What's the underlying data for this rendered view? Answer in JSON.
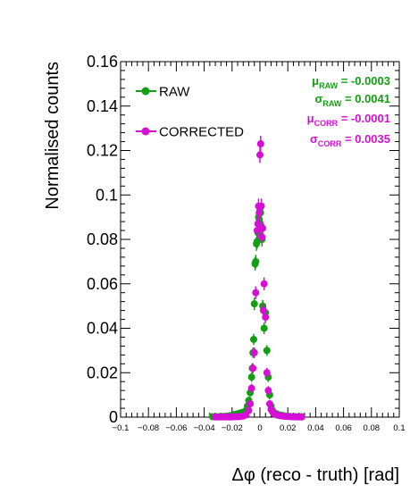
{
  "colors": {
    "raw": "#12a012",
    "corrected": "#d60ed6",
    "axis": "#000000"
  },
  "chart_data": {
    "type": "scatter",
    "xlabel": "Δφ  (reco - truth)  [rad]",
    "ylabel": "Normalised counts",
    "xlim": [
      -0.1,
      0.1
    ],
    "ylim": [
      0,
      0.16
    ],
    "xticks": [
      "−0.1",
      "−0.08",
      "−0.06",
      "−0.04",
      "−0.02",
      "0",
      "0.02",
      "0.04",
      "0.06",
      "0.08",
      "0.1"
    ],
    "xtick_values": [
      -0.1,
      -0.08,
      -0.06,
      -0.04,
      -0.02,
      0,
      0.02,
      0.04,
      0.06,
      0.08,
      0.1
    ],
    "yticks": [
      "0",
      "0.02",
      "0.04",
      "0.06",
      "0.08",
      "0.1",
      "0.12",
      "0.14",
      "0.16"
    ],
    "ytick_values": [
      0,
      0.02,
      0.04,
      0.06,
      0.08,
      0.1,
      0.12,
      0.14,
      0.16
    ],
    "grid": false,
    "legend_position": "top-left",
    "series": [
      {
        "name": "RAW",
        "color": "#12a012",
        "x": [
          -0.034,
          -0.032,
          -0.03,
          -0.028,
          -0.026,
          -0.024,
          -0.022,
          -0.02,
          -0.018,
          -0.016,
          -0.014,
          -0.012,
          -0.01,
          -0.009,
          -0.008,
          -0.007,
          -0.006,
          -0.0055,
          -0.005,
          -0.0045,
          -0.004,
          -0.0035,
          -0.003,
          -0.0025,
          -0.002,
          -0.0015,
          -0.001,
          -0.0005,
          0.0,
          0.0005,
          0.001,
          0.0015,
          0.002,
          0.003,
          0.004,
          0.005,
          0.006,
          0.007,
          0.008,
          0.009,
          0.01,
          0.012,
          0.014,
          0.016,
          0.018,
          0.02,
          0.022,
          0.024,
          0.026,
          0.028,
          0.03
        ],
        "y": [
          0.0002,
          0.0002,
          0.0002,
          0.0003,
          0.0003,
          0.0004,
          0.0006,
          0.0008,
          0.0012,
          0.0015,
          0.0019,
          0.0022,
          0.003,
          0.005,
          0.0075,
          0.011,
          0.018,
          0.022,
          0.029,
          0.035,
          0.051,
          0.069,
          0.07,
          0.078,
          0.079,
          0.083,
          0.09,
          0.089,
          0.093,
          0.092,
          0.086,
          0.08,
          0.05,
          0.04,
          0.047,
          0.03,
          0.018,
          0.01,
          0.005,
          0.003,
          0.002,
          0.0015,
          0.001,
          0.0008,
          0.0005,
          0.0004,
          0.0003,
          0.0002,
          0.0002,
          0.0002,
          0.0002
        ]
      },
      {
        "name": "CORRECTED",
        "color": "#d60ed6",
        "x": [
          -0.032,
          -0.03,
          -0.028,
          -0.026,
          -0.024,
          -0.022,
          -0.02,
          -0.018,
          -0.016,
          -0.014,
          -0.012,
          -0.01,
          -0.008,
          -0.007,
          -0.006,
          -0.005,
          -0.004,
          -0.003,
          -0.002,
          -0.0015,
          -0.001,
          -0.0005,
          0.0,
          0.0005,
          0.001,
          0.0015,
          0.002,
          0.0025,
          0.003,
          0.004,
          0.005,
          0.006,
          0.007,
          0.008,
          0.009,
          0.01,
          0.012,
          0.014,
          0.016,
          0.018,
          0.02,
          0.022,
          0.024,
          0.026,
          0.028,
          0.03
        ],
        "y": [
          0.0001,
          0.0001,
          0.0001,
          0.0001,
          0.0001,
          0.0001,
          0.0001,
          0.0002,
          0.0002,
          0.0003,
          0.0005,
          0.001,
          0.003,
          0.006,
          0.013,
          0.022,
          0.029,
          0.056,
          0.084,
          0.087,
          0.095,
          0.092,
          0.118,
          0.123,
          0.095,
          0.081,
          0.085,
          0.048,
          0.06,
          0.045,
          0.02,
          0.012,
          0.006,
          0.0035,
          0.0025,
          0.0015,
          0.001,
          0.0007,
          0.0005,
          0.0004,
          0.0003,
          0.0002,
          0.0002,
          0.0001,
          0.0001,
          0.0001
        ]
      }
    ],
    "annotations": [
      {
        "id": "mu_raw",
        "symbol": "μ",
        "sub": "RAW",
        "text": " = -0.0003",
        "color": "#12a012"
      },
      {
        "id": "sigma_raw",
        "symbol": "σ",
        "sub": "RAW",
        "text": " = 0.0041",
        "color": "#12a012"
      },
      {
        "id": "mu_corr",
        "symbol": "μ",
        "sub": "CORR",
        "text": " = -0.0001",
        "color": "#d60ed6"
      },
      {
        "id": "sigma_corr",
        "symbol": "σ",
        "sub": "CORR",
        "text": " = 0.0035",
        "color": "#d60ed6"
      }
    ]
  }
}
